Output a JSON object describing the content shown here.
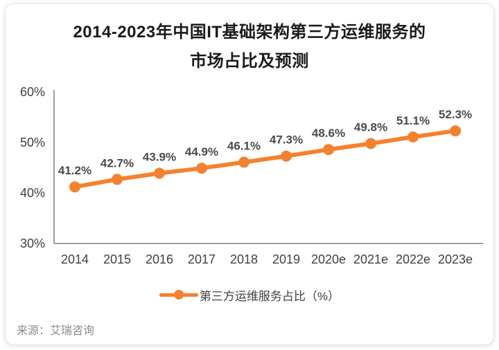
{
  "card": {
    "title_line1": "2014-2023年中国IT基础架构第三方运维服务的",
    "title_line2": "市场占比及预测",
    "source": "来源：艾瑞咨询"
  },
  "legend": {
    "label": "第三方运维服务占比（%）"
  },
  "chart_data": {
    "type": "line",
    "title": "2014-2023年中国IT基础架构第三方运维服务的市场占比及预测",
    "categories": [
      "2014",
      "2015",
      "2016",
      "2017",
      "2018",
      "2019",
      "2020e",
      "2021e",
      "2022e",
      "2023e"
    ],
    "series": [
      {
        "name": "第三方运维服务占比（%）",
        "values": [
          41.2,
          42.7,
          43.9,
          44.9,
          46.1,
          47.3,
          48.6,
          49.8,
          51.1,
          52.3
        ]
      }
    ],
    "data_labels": [
      "41.2%",
      "42.7%",
      "43.9%",
      "44.9%",
      "46.1%",
      "47.3%",
      "48.6%",
      "49.8%",
      "51.1%",
      "52.3%"
    ],
    "xlabel": "",
    "ylabel": "",
    "ylim": [
      30,
      60
    ],
    "yticks": [
      60,
      50,
      40,
      30
    ],
    "ytick_labels": [
      "60%",
      "50%",
      "40%",
      "30%"
    ],
    "grid": false,
    "legend_position": "bottom",
    "line_color": "#F5812E",
    "label_color": "#4a4a4a",
    "axis_color": "#9e9e9e"
  }
}
